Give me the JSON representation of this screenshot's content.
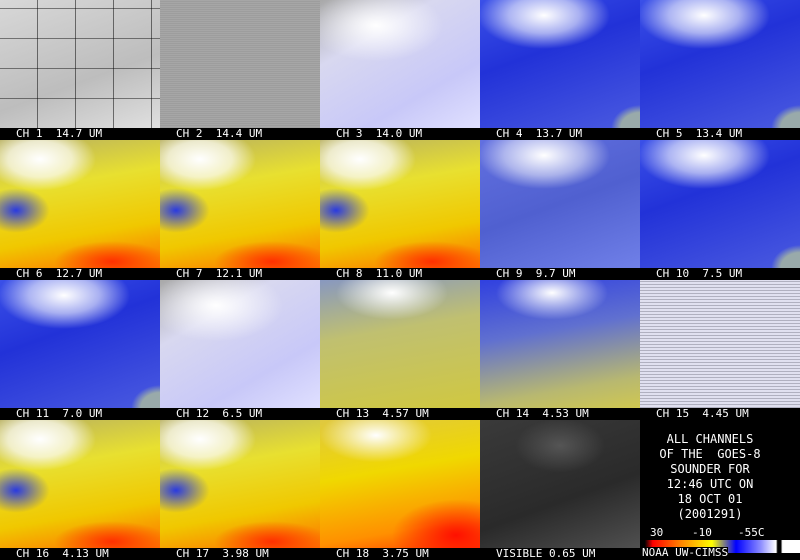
{
  "panels": [
    "CH 1  14.7 UM",
    "CH 2  14.4 UM",
    "CH 3  14.0 UM",
    "CH 4  13.7 UM",
    "CH 5  13.4 UM",
    "CH 6  12.7 UM",
    "CH 7  12.1 UM",
    "CH 8  11.0 UM",
    "CH 9  9.7 UM",
    "CH 10  7.5 UM",
    "CH 11  7.0 UM",
    "CH 12  6.5 UM",
    "CH 13  4.57 UM",
    "CH 14  4.53 UM",
    "CH 15  4.45 UM",
    "CH 16  4.13 UM",
    "CH 17  3.98 UM",
    "CH 18  3.75 UM",
    "VISIBLE 0.65 UM"
  ],
  "info": {
    "lines": [
      "ALL CHANNELS",
      "OF THE  GOES-8",
      "SOUNDER FOR",
      "12:46 UTC ON",
      "18 OCT 01",
      "(2001291)"
    ],
    "scale_labels": [
      "30",
      "-10",
      "-55C"
    ],
    "credit": "NOAA UW-CIMSS"
  }
}
